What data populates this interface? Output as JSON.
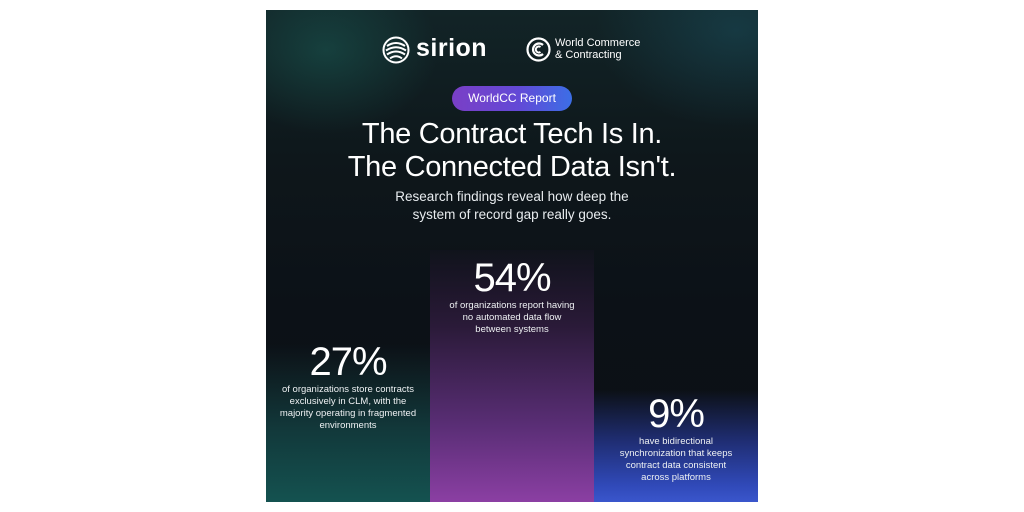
{
  "brand": {
    "sirion_name": "sirion",
    "wcc_line1": "World Commerce",
    "wcc_line2": "& Contracting"
  },
  "badge": "WorldCC Report",
  "title": {
    "line1": "The Contract Tech Is In.",
    "line2": "The Connected Data Isn't."
  },
  "subtitle": {
    "line1": "Research findings reveal how deep the",
    "line2": "system of record gap really goes."
  },
  "stats": [
    {
      "value": "27%",
      "lines": [
        "of organizations store contracts",
        "exclusively in CLM, with the",
        "majority operating in fragmented",
        "environments"
      ]
    },
    {
      "value": "54%",
      "lines": [
        "of organizations report having",
        "no automated data flow",
        "between systems"
      ]
    },
    {
      "value": "9%",
      "lines": [
        "have bidirectional",
        "synchronization that keeps",
        "contract data consistent",
        "across platforms"
      ]
    }
  ],
  "colors": {
    "background": "#0c1117",
    "left_column": "#145250",
    "middle_column": "#8b3fa3",
    "right_column": "#3a56cc",
    "badge_start": "#7a3fc6",
    "badge_end": "#3c6ee6"
  }
}
